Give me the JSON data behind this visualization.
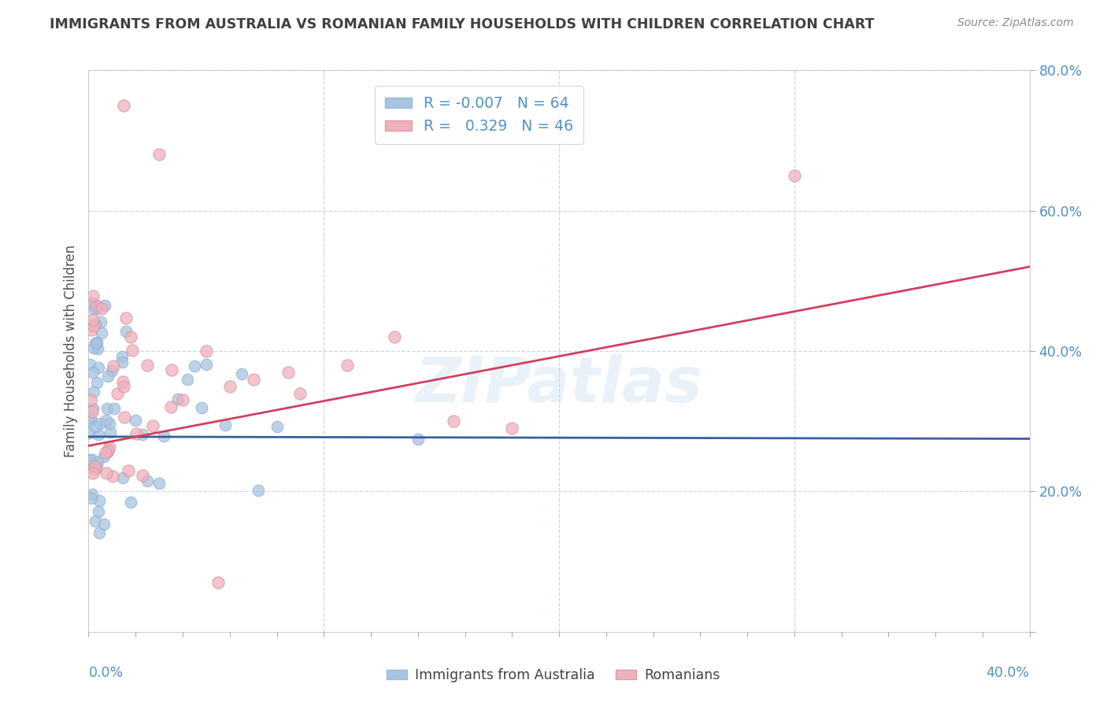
{
  "title": "IMMIGRANTS FROM AUSTRALIA VS ROMANIAN FAMILY HOUSEHOLDS WITH CHILDREN CORRELATION CHART",
  "source": "Source: ZipAtlas.com",
  "ylabel_label": "Family Households with Children",
  "legend_label1": "Immigrants from Australia",
  "legend_label2": "Romanians",
  "legend_r1": "-0.007",
  "legend_n1": "64",
  "legend_r2": "0.329",
  "legend_n2": "46",
  "watermark": "ZIPatlas",
  "background_color": "#ffffff",
  "blue_color": "#a8c4e0",
  "pink_color": "#f0b0bc",
  "blue_line_color": "#3a5fa0",
  "pink_line_color": "#d04060",
  "grid_color": "#c8d8ea",
  "title_color": "#404040",
  "axis_label_color": "#5090c8",
  "xmin": 0.0,
  "xmax": 40.0,
  "ymin": 0.0,
  "ymax": 80.0,
  "x_ticks": [
    0.0,
    40.0
  ],
  "x_tick_labels": [
    "0.0%",
    "40.0%"
  ],
  "y_ticks": [
    0.0,
    20.0,
    40.0,
    60.0,
    80.0
  ],
  "y_tick_labels": [
    "",
    "20.0%",
    "40.0%",
    "60.0%",
    "80.0%"
  ],
  "blue_trend_y0": 27.8,
  "blue_trend_y1": 27.5,
  "pink_trend_y0": 26.5,
  "pink_trend_y1": 52.0
}
